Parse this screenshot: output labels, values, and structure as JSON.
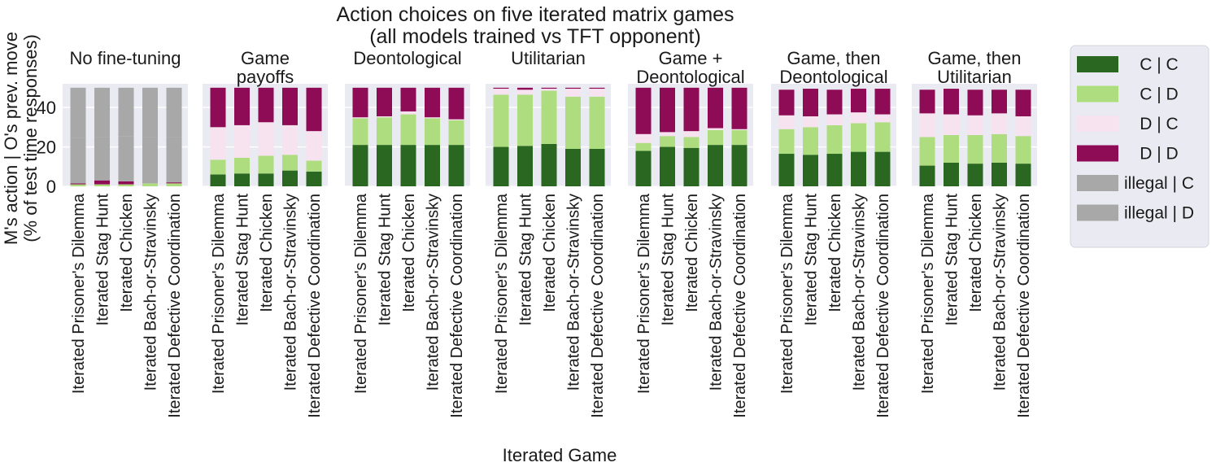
{
  "title_lines": [
    "Action choices on five iterated matrix games",
    "(all models trained vs TFT opponent)"
  ],
  "ylabel_lines": [
    "M's action | O's prev. move",
    "(% of test time responses)"
  ],
  "xlabel": "Iterated Game",
  "colors": {
    "C | C": "#2a6721",
    "C | D": "#aedd7f",
    "D | C": "#f7e3ef",
    "D | D": "#8e0c55",
    "illegal | C": "#a8a8a8",
    "illegal | D": "#a8a8a8",
    "panel_bg": "#eaeaf2",
    "grid": "#ffffff"
  },
  "legend": {
    "entries": [
      "C | C",
      "C | D",
      "D | C",
      "D | D",
      "illegal | C",
      "illegal | D"
    ]
  },
  "chart_data": {
    "type": "bar",
    "stacked": true,
    "ylim": [
      0,
      52
    ],
    "yticks": [
      0,
      20,
      40
    ],
    "grid": true,
    "legend_position": "right",
    "categories": [
      "Iterated Prisoner's Dilemma",
      "Iterated Stag Hunt",
      "Iterated Chicken",
      "Iterated Bach-or-Stravinsky",
      "Iterated Defective Coordination"
    ],
    "stack_order": [
      "C | C",
      "C | D",
      "D | C",
      "D | D",
      "illegal | C",
      "illegal | D"
    ],
    "panels": [
      {
        "title_lines": [
          "No fine-tuning"
        ],
        "series": [
          {
            "name": "C | C",
            "values": [
              0,
              0,
              0,
              0,
              0
            ]
          },
          {
            "name": "C | D",
            "values": [
              1,
              1,
              1,
              1.5,
              1.5
            ]
          },
          {
            "name": "D | C",
            "values": [
              0,
              0,
              0,
              0,
              0
            ]
          },
          {
            "name": "D | D",
            "values": [
              0.5,
              2,
              1.5,
              0,
              0.5
            ]
          },
          {
            "name": "illegal | C",
            "values": [
              23,
              22,
              23,
              23.5,
              23
            ]
          },
          {
            "name": "illegal | D",
            "values": [
              25.5,
              25,
              24.5,
              25,
              25
            ]
          }
        ]
      },
      {
        "title_lines": [
          "Game",
          "payoffs"
        ],
        "series": [
          {
            "name": "C | C",
            "values": [
              6,
              6.5,
              6.5,
              8,
              7.5
            ]
          },
          {
            "name": "C | D",
            "values": [
              7.5,
              8,
              9,
              8,
              5.5
            ]
          },
          {
            "name": "D | C",
            "values": [
              16.5,
              16.5,
              17,
              15,
              15
            ]
          },
          {
            "name": "D | D",
            "values": [
              20,
              19,
              17.5,
              19,
              22
            ]
          },
          {
            "name": "illegal | C",
            "values": [
              0,
              0,
              0,
              0,
              0
            ]
          },
          {
            "name": "illegal | D",
            "values": [
              0,
              0,
              0,
              0,
              0
            ]
          }
        ]
      },
      {
        "title_lines": [
          "Deontological"
        ],
        "series": [
          {
            "name": "C | C",
            "values": [
              21,
              21,
              21,
              21,
              21
            ]
          },
          {
            "name": "C | D",
            "values": [
              13.5,
              14,
              15.5,
              13.5,
              12.5
            ]
          },
          {
            "name": "D | C",
            "values": [
              0.5,
              0.5,
              1.5,
              0.5,
              0.5
            ]
          },
          {
            "name": "D | D",
            "values": [
              15,
              14.5,
              12,
              15,
              16
            ]
          },
          {
            "name": "illegal | C",
            "values": [
              0,
              0,
              0,
              0,
              0
            ]
          },
          {
            "name": "illegal | D",
            "values": [
              0,
              0,
              0,
              0,
              0
            ]
          }
        ]
      },
      {
        "title_lines": [
          "Utilitarian"
        ],
        "series": [
          {
            "name": "C | C",
            "values": [
              20,
              20.5,
              21.5,
              19,
              19
            ]
          },
          {
            "name": "C | D",
            "values": [
              26.5,
              26,
              27,
              26.5,
              26.5
            ]
          },
          {
            "name": "D | C",
            "values": [
              3,
              2.5,
              1,
              4,
              4
            ]
          },
          {
            "name": "D | D",
            "values": [
              0.5,
              1,
              0.5,
              0.5,
              0.5
            ]
          },
          {
            "name": "illegal | C",
            "values": [
              0,
              0,
              0,
              0,
              0
            ]
          },
          {
            "name": "illegal | D",
            "values": [
              0,
              0,
              0,
              0,
              0
            ]
          }
        ]
      },
      {
        "title_lines": [
          "Game +",
          "Deontological"
        ],
        "series": [
          {
            "name": "C | C",
            "values": [
              18,
              20,
              19.5,
              21,
              21
            ]
          },
          {
            "name": "C | D",
            "values": [
              4,
              5.5,
              5.5,
              7.5,
              7.5
            ]
          },
          {
            "name": "D | C",
            "values": [
              4.5,
              2,
              3,
              1,
              0.5
            ]
          },
          {
            "name": "D | D",
            "values": [
              23.5,
              22.5,
              22,
              20.5,
              21
            ]
          },
          {
            "name": "illegal | C",
            "values": [
              0,
              0,
              0,
              0,
              0
            ]
          },
          {
            "name": "illegal | D",
            "values": [
              0,
              0,
              0,
              0,
              0
            ]
          }
        ]
      },
      {
        "title_lines": [
          "Game, then",
          "Deontological"
        ],
        "series": [
          {
            "name": "C | C",
            "values": [
              16.5,
              16,
              16.5,
              17.5,
              17.5
            ]
          },
          {
            "name": "C | D",
            "values": [
              12.5,
              14,
              14.5,
              14.5,
              15
            ]
          },
          {
            "name": "D | C",
            "values": [
              7,
              5.5,
              5.5,
              5.5,
              4
            ]
          },
          {
            "name": "D | D",
            "values": [
              13,
              14,
              12.5,
              12,
              13
            ]
          },
          {
            "name": "illegal | C",
            "values": [
              0,
              0,
              0,
              0,
              0
            ]
          },
          {
            "name": "illegal | D",
            "values": [
              0,
              0,
              0,
              0,
              0
            ]
          }
        ]
      },
      {
        "title_lines": [
          "Game, then",
          "Utilitarian"
        ],
        "series": [
          {
            "name": "C | C",
            "values": [
              10.5,
              12,
              11.5,
              12,
              11.5
            ]
          },
          {
            "name": "C | D",
            "values": [
              14.5,
              14,
              14.5,
              14.5,
              14
            ]
          },
          {
            "name": "D | C",
            "values": [
              12,
              10.5,
              10,
              10.5,
              10
            ]
          },
          {
            "name": "D | D",
            "values": [
              12,
              13,
              13,
              12,
              13.5
            ]
          },
          {
            "name": "illegal | C",
            "values": [
              0,
              0,
              0,
              0,
              0
            ]
          },
          {
            "name": "illegal | D",
            "values": [
              0,
              0,
              0,
              0,
              0
            ]
          }
        ]
      }
    ]
  }
}
